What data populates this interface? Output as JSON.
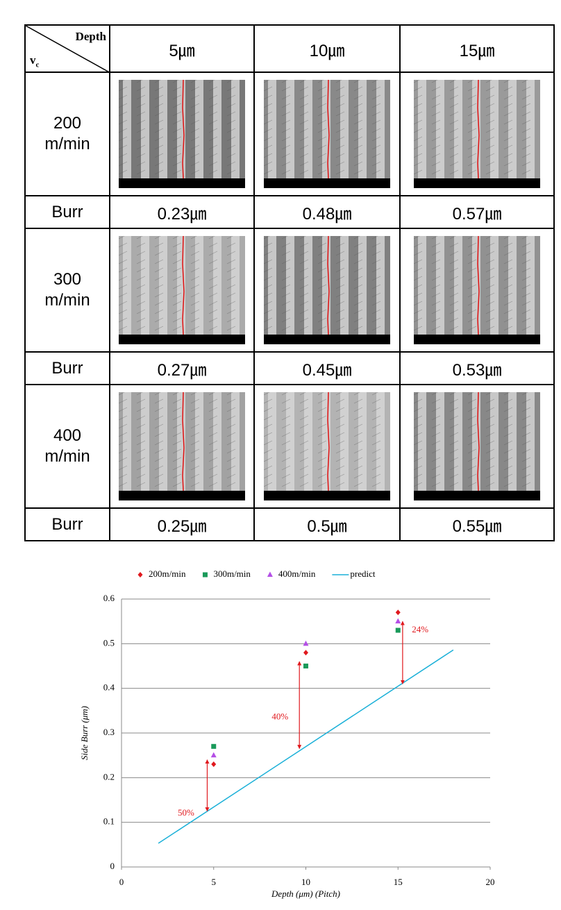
{
  "table": {
    "corner": {
      "column_label": "Depth",
      "row_label": "v",
      "row_label_sub": "c"
    },
    "columns": [
      "5㎛",
      "10㎛",
      "15㎛"
    ],
    "rows": [
      {
        "label": "200 m/min",
        "burr_label": "Burr",
        "burr": [
          "0.23㎛",
          "0.48㎛",
          "0.57㎛"
        ]
      },
      {
        "label": "300 m/min",
        "burr_label": "Burr",
        "burr": [
          "0.27㎛",
          "0.45㎛",
          "0.53㎛"
        ]
      },
      {
        "label": "400 m/min",
        "burr_label": "Burr",
        "burr": [
          "0.25㎛",
          "0.5㎛",
          "0.55㎛"
        ]
      }
    ]
  },
  "chart_data": {
    "type": "scatter",
    "x_label": "Depth (μm) (Pitch)",
    "y_label": "Side Burr (μm)",
    "series": [
      {
        "name": "200m/min",
        "color": "#e0191e",
        "marker": "diamond",
        "x": [
          5,
          10,
          15
        ],
        "values": [
          0.23,
          0.48,
          0.57
        ]
      },
      {
        "name": "300m/min",
        "color": "#1a9a5a",
        "marker": "square",
        "x": [
          5,
          10,
          15
        ],
        "values": [
          0.27,
          0.45,
          0.53
        ]
      },
      {
        "name": "400m/min",
        "color": "#b44fe6",
        "marker": "triangle",
        "x": [
          5,
          10,
          15
        ],
        "values": [
          0.25,
          0.5,
          0.55
        ]
      },
      {
        "name": "predict",
        "color": "#1ab0d8",
        "marker": "line",
        "x": [
          2,
          18
        ],
        "values": [
          0.053,
          0.486
        ]
      }
    ],
    "annotations": [
      {
        "text": "50%",
        "x": 3.5,
        "y": 0.12,
        "arrow_x": 4.65,
        "arrow_y": [
          0.24,
          0.125
        ],
        "color": "#e0191e"
      },
      {
        "text": "40%",
        "x": 8.6,
        "y": 0.335,
        "arrow_x": 9.65,
        "arrow_y": [
          0.46,
          0.265
        ],
        "color": "#e0191e"
      },
      {
        "text": "24%",
        "x": 16.2,
        "y": 0.53,
        "arrow_x": 15.25,
        "arrow_y": [
          0.55,
          0.41
        ],
        "color": "#e0191e"
      }
    ],
    "xlim": [
      0,
      20
    ],
    "xticks": [
      0,
      5,
      10,
      15,
      20
    ],
    "ylim": [
      0,
      0.6
    ],
    "yticks": [
      0,
      0.1,
      0.2,
      0.3,
      0.4,
      0.5,
      0.6
    ],
    "grid": true,
    "legend": "top"
  }
}
